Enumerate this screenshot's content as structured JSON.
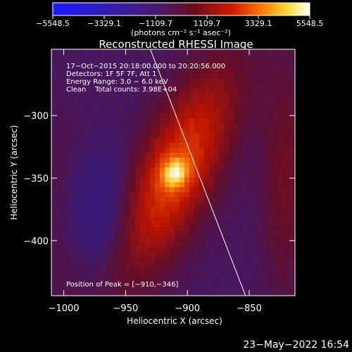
{
  "colorbar": {
    "tick_labels": [
      "−5548.5",
      "−3329.1",
      "−1109.7",
      "1109.7",
      "3329.1",
      "5548.5"
    ],
    "range": [
      -5548.5,
      5548.5
    ],
    "colors": [
      "#1a1aff",
      "#3b1d9c",
      "#4a1a6b",
      "#6b0a1a",
      "#d21a00",
      "#ff8000",
      "#ffe040",
      "#ffffff"
    ]
  },
  "chart_data": {
    "type": "heatmap",
    "title": "Reconstructed RHESSI Image",
    "unit_label": "(photons cm⁻² s⁻¹ asec⁻²)",
    "xlabel": "Heliocentric X (arcsec)",
    "ylabel": "Heliocentric Y (arcsec)",
    "xlim": [
      -1010,
      -813
    ],
    "ylim": [
      -444,
      -247
    ],
    "x_ticks": [
      {
        "value": -1000,
        "label": "−1000"
      },
      {
        "value": -950,
        "label": "−950"
      },
      {
        "value": -900,
        "label": "−900"
      },
      {
        "value": -850,
        "label": "−850"
      }
    ],
    "y_ticks": [
      {
        "value": -300,
        "label": "−300"
      },
      {
        "value": -350,
        "label": "−350"
      },
      {
        "value": -400,
        "label": "−400"
      }
    ],
    "info_lines": [
      "17−Oct−2015 20:18:00.000 to 20:20:56.000",
      "Detectors: 1F 5F 7F, Att 1",
      "Energy Range: 3.0 − 6.0 keV",
      "Clean    Total counts: 3.98E+04"
    ],
    "peak_label": "Position of Peak = [−910,−346]",
    "peak": [
      -910,
      -346
    ],
    "peak_value": 5548.5,
    "limb_line": [
      [
        -930,
        -247
      ],
      [
        -853,
        -444
      ]
    ],
    "grid": false
  },
  "footer": {
    "timestamp": "23−May−2022 16:54"
  }
}
